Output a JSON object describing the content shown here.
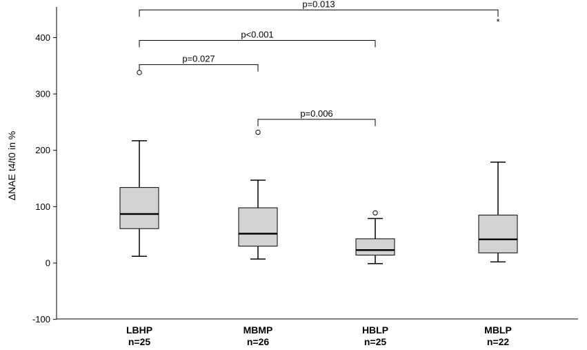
{
  "chart_data": {
    "type": "boxplot",
    "ylabel": "ΔNAE t4/t0 in %",
    "ylim": [
      -100,
      470
    ],
    "yticks": [
      -100,
      0,
      100,
      200,
      300,
      400
    ],
    "grid": false,
    "box_color": "#d3d3d3",
    "categories": [
      {
        "name": "LBHP",
        "n_label": "n=25",
        "min": 12,
        "q1": 61,
        "median": 87,
        "q3": 134,
        "max": 217,
        "outliers": [
          338
        ]
      },
      {
        "name": "MBMP",
        "n_label": "n=26",
        "min": 7,
        "q1": 30,
        "median": 52,
        "q3": 98,
        "max": 147,
        "outliers": [
          232
        ]
      },
      {
        "name": "HBLP",
        "n_label": "n=25",
        "min": -1,
        "q1": 14,
        "median": 23,
        "q3": 43,
        "max": 79,
        "outliers": [
          89
        ]
      },
      {
        "name": "MBLP",
        "n_label": "n=22",
        "min": 2,
        "q1": 18,
        "median": 42,
        "q3": 85,
        "max": 179,
        "outliers": []
      }
    ],
    "comparisons": [
      {
        "from": 0,
        "to": 3,
        "label": "p=0.013",
        "y": 449
      },
      {
        "from": 0,
        "to": 2,
        "label": "p<0.001",
        "y": 395
      },
      {
        "from": 0,
        "to": 1,
        "label": "p=0.027",
        "y": 352
      },
      {
        "from": 1,
        "to": 2,
        "label": "p=0.006",
        "y": 255
      }
    ],
    "annotations": [
      {
        "category": 3,
        "text": "*",
        "y": 430
      }
    ]
  }
}
